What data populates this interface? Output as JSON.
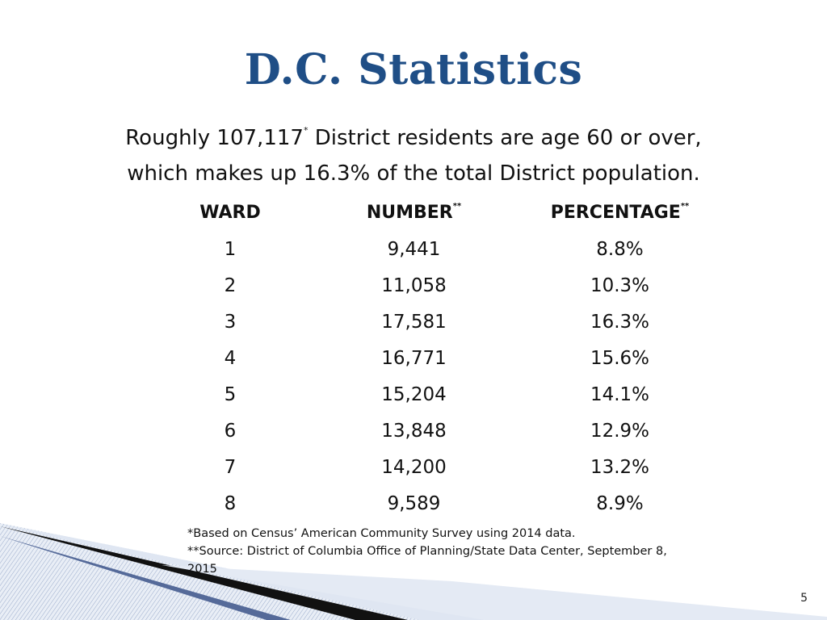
{
  "slide": {
    "title": "D.C. Statistics",
    "subtitle_line1_pre": "Roughly 107,117",
    "subtitle_line1_sup": "*",
    "subtitle_line1_post": " District residents are age 60 or over,",
    "subtitle_line2": "which makes up 16.3% of the total District population.",
    "page_number": "5"
  },
  "table": {
    "headers": [
      {
        "label": "WARD",
        "sup": ""
      },
      {
        "label": "NUMBER",
        "sup": "**"
      },
      {
        "label": "PERCENTAGE",
        "sup": "**"
      }
    ],
    "rows": [
      [
        "1",
        "9,441",
        "8.8%"
      ],
      [
        "2",
        "11,058",
        "10.3%"
      ],
      [
        "3",
        "17,581",
        "16.3%"
      ],
      [
        "4",
        "16,771",
        "15.6%"
      ],
      [
        "5",
        "15,204",
        "14.1%"
      ],
      [
        "6",
        "13,848",
        "12.9%"
      ],
      [
        "7",
        "14,200",
        "13.2%"
      ],
      [
        "8",
        "9,589",
        "8.9%"
      ]
    ]
  },
  "footnotes": {
    "note1": "*Based on Census’ American Community Survey using 2014 data.",
    "note2": "**Source: District of Columbia Office of Planning/State Data Center, September 8, 2015"
  },
  "colors": {
    "title": "#1f4e86",
    "stripe_dark": "#111111",
    "stripe_light": "#c9d3e6",
    "stripe_mid": "#7f95bf"
  }
}
